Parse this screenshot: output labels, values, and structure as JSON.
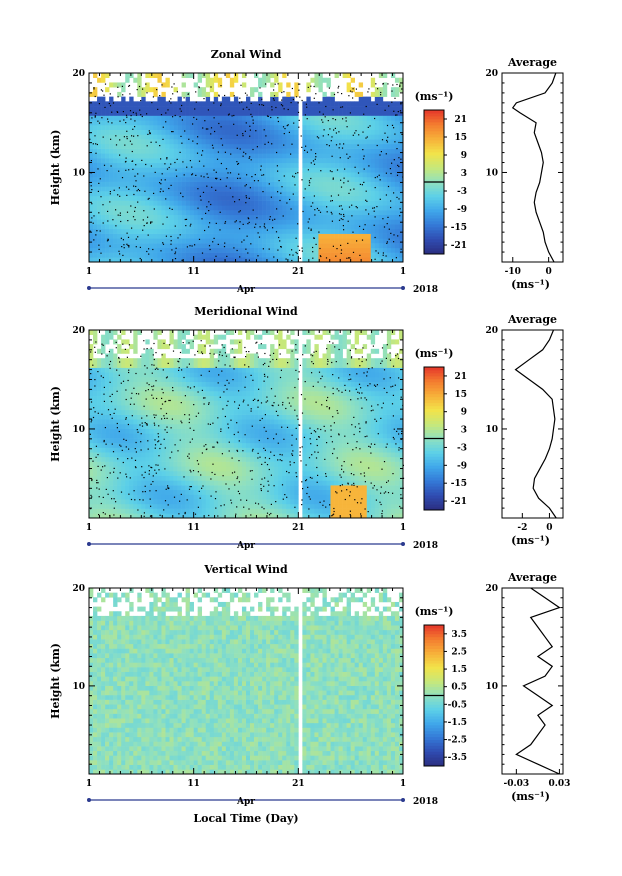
{
  "figure": {
    "x_label": "Local Time (Day)",
    "month_label": "Apr",
    "year_label": "2018",
    "colorbar_unit": "(ms⁻¹)",
    "average_title": "Average",
    "average_unit": "(ms⁻¹)"
  },
  "chart_data": [
    {
      "type": "heatmap",
      "title": "Zonal Wind",
      "xlabel": "",
      "ylabel": "Height (km)",
      "x_ticklabels": [
        "1",
        "11",
        "21",
        "1"
      ],
      "y_ticklabels": [
        "20",
        "10"
      ],
      "ylim": [
        1,
        20
      ],
      "colorbar": {
        "unit": "(ms⁻¹)",
        "ticks": [
          "21",
          "15",
          "9",
          "3",
          "-3",
          "-9",
          "-15",
          "-21"
        ],
        "range": [
          -24,
          24
        ]
      },
      "field_pattern": "westward -5 to -20 in troposphere, strong negative (-20) near 16-17 km, positive 10-20 near days 23-27 below 4 km",
      "average_profile": {
        "title": "Average",
        "unit": "(ms⁻¹)",
        "xlim": [
          -13,
          4
        ],
        "x_ticklabels": [
          "-10",
          "0"
        ],
        "y_ticklabels": [
          "20",
          "10"
        ],
        "height_km": [
          1,
          2,
          3,
          4,
          5,
          6,
          7,
          8,
          9,
          10,
          11,
          12,
          13,
          14,
          15,
          16,
          16.5,
          17,
          18,
          19,
          20
        ],
        "value": [
          1.5,
          0,
          -1,
          -1.5,
          -2.5,
          -3.5,
          -4,
          -3.5,
          -2.5,
          -2,
          -1.5,
          -2,
          -3,
          -4,
          -3.5,
          -8,
          -10,
          -9,
          -1,
          1,
          2
        ]
      }
    },
    {
      "type": "heatmap",
      "title": "Meridional Wind",
      "xlabel": "",
      "ylabel": "Height (km)",
      "x_ticklabels": [
        "1",
        "11",
        "21",
        "1"
      ],
      "y_ticklabels": [
        "20",
        "10"
      ],
      "ylim": [
        1,
        20
      ],
      "colorbar": {
        "unit": "(ms⁻¹)",
        "ticks": [
          "21",
          "15",
          "9",
          "3",
          "-3",
          "-9",
          "-15",
          "-21"
        ],
        "range": [
          -24,
          24
        ]
      },
      "field_pattern": "mostly -6 to 0 in troposphere, positive 10-20 near days 25-27 below 4 km",
      "average_profile": {
        "title": "Average",
        "unit": "(ms⁻¹)",
        "xlim": [
          -3.5,
          1
        ],
        "x_ticklabels": [
          "-2",
          "0"
        ],
        "y_ticklabels": [
          "20",
          "10"
        ],
        "height_km": [
          1,
          2,
          3,
          4,
          5,
          6,
          7,
          8,
          9,
          10,
          11,
          12,
          13,
          14,
          15,
          16,
          17,
          18,
          19,
          20
        ],
        "value": [
          0.5,
          0,
          -0.8,
          -1.2,
          -1.1,
          -0.7,
          -0.3,
          0,
          0.2,
          0.3,
          0.4,
          0.3,
          0.2,
          -0.5,
          -1.5,
          -2.5,
          -1.5,
          -0.5,
          0,
          0.3
        ]
      }
    },
    {
      "type": "heatmap",
      "title": "Vertical Wind",
      "xlabel": "Local Time (Day)",
      "ylabel": "Height (km)",
      "x_ticklabels": [
        "1",
        "11",
        "21",
        "1"
      ],
      "y_ticklabels": [
        "20",
        "10"
      ],
      "ylim": [
        1,
        20
      ],
      "colorbar": {
        "unit": "(ms⁻¹)",
        "ticks": [
          "3.5",
          "2.5",
          "1.5",
          "0.5",
          "-0.5",
          "-1.5",
          "-2.5",
          "-3.5"
        ],
        "range": [
          -4,
          4
        ]
      },
      "field_pattern": "near zero (-0.5 to 0.5) everywhere with small noise",
      "average_profile": {
        "title": "Average",
        "unit": "(ms⁻¹)",
        "xlim": [
          -0.05,
          0.035
        ],
        "x_ticklabels": [
          "-0.03",
          "0.03"
        ],
        "y_ticklabels": [
          "20",
          "10"
        ],
        "height_km": [
          1,
          2,
          3,
          4,
          5,
          6,
          7,
          8,
          9,
          10,
          11,
          12,
          13,
          14,
          15,
          16,
          17,
          18,
          19,
          20
        ],
        "value": [
          0.03,
          0.0,
          -0.03,
          -0.01,
          0.0,
          0.01,
          0.0,
          0.02,
          0.0,
          -0.02,
          0.01,
          0.02,
          0.0,
          0.02,
          0.01,
          0.0,
          -0.01,
          0.03,
          0.01,
          -0.01
        ]
      }
    }
  ]
}
